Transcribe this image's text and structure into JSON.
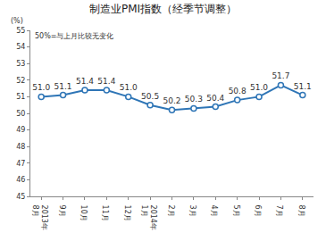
{
  "chart_data": {
    "type": "line",
    "title": "制造业PMI指数（经季节调整）",
    "y_label": "(%)",
    "annotation": "50%=与上月比较无变化",
    "categories": [
      "2013年\n8月",
      "9月",
      "10月",
      "11月",
      "12月",
      "2014年\n1月",
      "2月",
      "3月",
      "4月",
      "5月",
      "6月",
      "7月",
      "8月"
    ],
    "values": [
      51.0,
      51.1,
      51.4,
      51.4,
      51.0,
      50.5,
      50.2,
      50.3,
      50.4,
      50.8,
      51.0,
      51.7,
      51.1
    ],
    "value_labels": [
      "51.0",
      "51.1",
      "51.4",
      "51.4",
      "51.0",
      "50.5",
      "50.2",
      "50.3",
      "50.4",
      "50.8",
      "51.0",
      "51.7",
      "51.1"
    ],
    "color": "#2e75b6",
    "marker": "circle",
    "ylim": [
      45,
      55
    ],
    "yticks": [
      45,
      46,
      47,
      48,
      49,
      50,
      51,
      52,
      53,
      54,
      55
    ],
    "grid": false,
    "data_labels": true
  }
}
